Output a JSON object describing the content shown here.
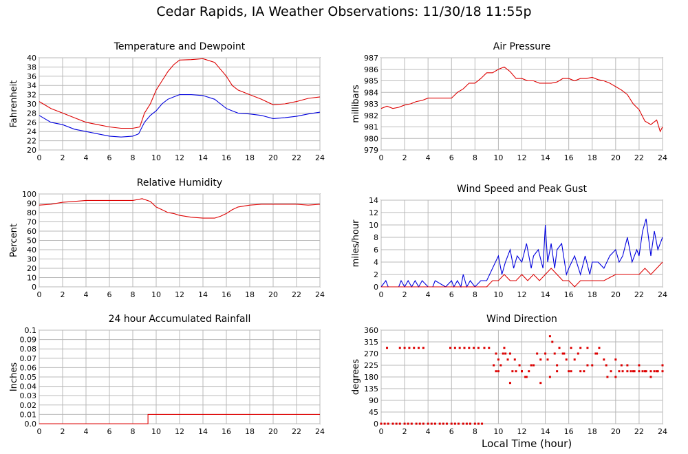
{
  "page": {
    "title": "Cedar Rapids, IA Weather Observations: 11/30/18 11:55p",
    "xlabel": "Local Time (hour)"
  },
  "chart_data": [
    {
      "id": "temp",
      "type": "line",
      "title": "Temperature and Dewpoint",
      "ylabel": "Fahrenheit",
      "xlabel": "",
      "xlim": [
        0,
        24
      ],
      "ylim": [
        20,
        40
      ],
      "yticks": [
        20,
        22,
        24,
        26,
        28,
        30,
        32,
        34,
        36,
        38,
        40
      ],
      "ytick_labels": [
        "20",
        "22",
        "24",
        "26",
        "28",
        "30",
        "32",
        "34",
        "36",
        "38",
        "40"
      ],
      "xticks": [
        0,
        2,
        4,
        6,
        8,
        10,
        12,
        14,
        16,
        18,
        20,
        22,
        24
      ],
      "grid": true,
      "series": [
        {
          "color": "#dd0000",
          "x": [
            0,
            1,
            2,
            3,
            4,
            5,
            6,
            7,
            8,
            8.6,
            9,
            9.5,
            10,
            10.5,
            11,
            11.5,
            12,
            13,
            14,
            15,
            15.5,
            16,
            16.5,
            17,
            18,
            19,
            20,
            21,
            22,
            23,
            24
          ],
          "y": [
            30.5,
            29,
            28,
            27,
            26,
            25.5,
            25,
            24.7,
            24.7,
            25,
            28,
            30,
            33,
            35,
            37,
            38.5,
            39.5,
            39.6,
            39.8,
            39,
            37.5,
            36,
            34,
            33,
            32,
            31,
            29.8,
            30,
            30.5,
            31.2,
            31.5
          ]
        },
        {
          "color": "#0000dd",
          "x": [
            0,
            1,
            2,
            3,
            4,
            5,
            6,
            7,
            8,
            8.5,
            9,
            9.5,
            10,
            10.5,
            11,
            11.5,
            12,
            13,
            14,
            15,
            15.5,
            16,
            16.5,
            17,
            18,
            19,
            20,
            21,
            22,
            23,
            24
          ],
          "y": [
            27.5,
            26,
            25.5,
            24.5,
            24,
            23.5,
            23,
            22.8,
            23,
            23.5,
            26,
            27.5,
            28.5,
            30,
            31,
            31.5,
            32,
            32,
            31.8,
            31,
            30,
            29,
            28.5,
            28,
            27.8,
            27.5,
            26.8,
            27,
            27.3,
            27.8,
            28.2
          ]
        }
      ]
    },
    {
      "id": "pressure",
      "type": "line",
      "title": "Air Pressure",
      "ylabel": "millibars",
      "xlabel": "",
      "xlim": [
        0,
        24
      ],
      "ylim": [
        979,
        987
      ],
      "yticks": [
        979,
        980,
        981,
        982,
        983,
        984,
        985,
        986,
        987
      ],
      "ytick_labels": [
        "979",
        "980",
        "981",
        "982",
        "983",
        "984",
        "985",
        "986",
        "987"
      ],
      "xticks": [
        0,
        2,
        4,
        6,
        8,
        10,
        12,
        14,
        16,
        18,
        20,
        22,
        24
      ],
      "grid": true,
      "series": [
        {
          "color": "#dd0000",
          "x": [
            0,
            0.5,
            1,
            1.5,
            2,
            2.5,
            3,
            3.5,
            4,
            4.5,
            5,
            5.5,
            6,
            6.5,
            7,
            7.5,
            8,
            8.5,
            9,
            9.5,
            10,
            10.5,
            11,
            11.5,
            12,
            12.5,
            13,
            13.5,
            14,
            14.5,
            15,
            15.5,
            16,
            16.5,
            17,
            17.5,
            18,
            18.5,
            19,
            19.5,
            20,
            20.5,
            21,
            21.5,
            22,
            22.5,
            23,
            23.5,
            23.8,
            24
          ],
          "y": [
            982.6,
            982.8,
            982.6,
            982.7,
            982.9,
            983,
            983.2,
            983.3,
            983.5,
            983.5,
            983.5,
            983.5,
            983.5,
            984,
            984.3,
            984.8,
            984.8,
            985.2,
            985.7,
            985.7,
            986,
            986.2,
            985.8,
            985.2,
            985.2,
            985,
            985,
            984.8,
            984.8,
            984.8,
            984.9,
            985.2,
            985.2,
            985,
            985.2,
            985.2,
            985.3,
            985.1,
            985,
            984.8,
            984.5,
            984.2,
            983.8,
            983,
            982.5,
            981.5,
            981.2,
            981.6,
            980.6,
            981
          ]
        }
      ]
    },
    {
      "id": "humidity",
      "type": "line",
      "title": "Relative Humidity",
      "ylabel": "Percent",
      "xlabel": "",
      "xlim": [
        0,
        24
      ],
      "ylim": [
        0,
        100
      ],
      "yticks": [
        0,
        10,
        20,
        30,
        40,
        50,
        60,
        70,
        80,
        90,
        100
      ],
      "ytick_labels": [
        "0",
        "10",
        "20",
        "30",
        "40",
        "50",
        "60",
        "70",
        "80",
        "90",
        "100"
      ],
      "xticks": [
        0,
        2,
        4,
        6,
        8,
        10,
        12,
        14,
        16,
        18,
        20,
        22,
        24
      ],
      "grid": true,
      "series": [
        {
          "color": "#dd0000",
          "x": [
            0,
            1,
            2,
            3,
            4,
            5,
            6,
            7,
            8,
            8.8,
            9.5,
            10,
            10.5,
            11,
            11.5,
            12,
            13,
            14,
            15,
            15.5,
            16,
            16.5,
            17,
            18,
            19,
            20,
            21,
            22,
            23,
            24
          ],
          "y": [
            88,
            89,
            91,
            92,
            93,
            93,
            93,
            93,
            93,
            95,
            92,
            86,
            83,
            80,
            79,
            77,
            75,
            74,
            74,
            76,
            79,
            83,
            86,
            88,
            89,
            89,
            89,
            89,
            88,
            89
          ]
        }
      ]
    },
    {
      "id": "wind",
      "type": "line",
      "title": "Wind Speed and Peak Gust",
      "ylabel": "miles/hour",
      "xlabel": "",
      "xlim": [
        0,
        24
      ],
      "ylim": [
        0,
        14
      ],
      "yticks": [
        0,
        2,
        4,
        6,
        8,
        10,
        12,
        14
      ],
      "ytick_labels": [
        "0",
        "2",
        "4",
        "6",
        "8",
        "10",
        "12",
        "14"
      ],
      "xticks": [
        0,
        2,
        4,
        6,
        8,
        10,
        12,
        14,
        16,
        18,
        20,
        22,
        24
      ],
      "grid": true,
      "series": [
        {
          "color": "#0000dd",
          "x": [
            0,
            0.4,
            0.6,
            0.8,
            1.5,
            1.7,
            2,
            2.3,
            2.6,
            2.9,
            3.2,
            3.5,
            4,
            4.4,
            4.6,
            5.5,
            6,
            6.2,
            6.5,
            6.8,
            7,
            7.3,
            7.6,
            8,
            8.5,
            9,
            9.5,
            10,
            10.3,
            10.6,
            11,
            11.3,
            11.6,
            12,
            12.4,
            12.8,
            13,
            13.4,
            13.8,
            14,
            14.2,
            14.5,
            14.8,
            15,
            15.4,
            15.8,
            16,
            16.5,
            17,
            17.4,
            17.8,
            18,
            18.5,
            19,
            19.5,
            20,
            20.3,
            20.6,
            21,
            21.4,
            21.8,
            22,
            22.3,
            22.6,
            23,
            23.3,
            23.6,
            24
          ],
          "y": [
            0,
            1,
            0,
            0,
            0,
            1,
            0,
            1,
            0,
            1,
            0,
            1,
            0,
            0,
            1,
            0,
            1,
            0,
            1,
            0,
            2,
            0,
            1,
            0,
            1,
            1,
            3,
            5,
            2,
            4,
            6,
            3,
            5,
            4,
            7,
            3,
            5,
            6,
            3,
            10,
            4,
            7,
            3,
            6,
            7,
            2,
            3,
            5,
            2,
            5,
            2,
            4,
            4,
            3,
            5,
            6,
            4,
            5,
            8,
            4,
            6,
            5,
            9,
            11,
            5,
            9,
            6,
            8
          ]
        },
        {
          "color": "#dd0000",
          "x": [
            0,
            9,
            9.5,
            10,
            10.5,
            11,
            11.5,
            12,
            12.5,
            13,
            13.5,
            14,
            14.5,
            15,
            15.5,
            16,
            16.5,
            17,
            18,
            19,
            20,
            21,
            22,
            22.5,
            23,
            23.5,
            24
          ],
          "y": [
            0,
            0,
            1,
            1,
            2,
            1,
            1,
            2,
            1,
            2,
            1,
            2,
            3,
            2,
            1,
            1,
            0,
            1,
            1,
            1,
            2,
            2,
            2,
            3,
            2,
            3,
            4
          ]
        }
      ]
    },
    {
      "id": "rain",
      "type": "line",
      "title": "24 hour Accumulated Rainfall",
      "ylabel": "Inches",
      "xlabel": "",
      "xlim": [
        0,
        24
      ],
      "ylim": [
        0,
        0.1
      ],
      "yticks": [
        0,
        0.01,
        0.02,
        0.03,
        0.04,
        0.05,
        0.06,
        0.07,
        0.08,
        0.09,
        0.1
      ],
      "ytick_labels": [
        "0.0",
        "0.01",
        "0.02",
        "0.03",
        "0.04",
        "0.05",
        "0.06",
        "0.07",
        "0.08",
        "0.09",
        "0.1"
      ],
      "xticks": [
        0,
        2,
        4,
        6,
        8,
        10,
        12,
        14,
        16,
        18,
        20,
        22,
        24
      ],
      "grid": true,
      "series": [
        {
          "color": "#dd0000",
          "x": [
            0,
            9.3,
            9.3,
            24
          ],
          "y": [
            0,
            0,
            0.01,
            0.01
          ]
        }
      ]
    },
    {
      "id": "direction",
      "type": "scatter",
      "title": "Wind Direction",
      "ylabel": "degrees",
      "xlabel": "Local Time (hour)",
      "xlim": [
        0,
        24
      ],
      "ylim": [
        0,
        360
      ],
      "yticks": [
        0,
        45,
        90,
        135,
        180,
        225,
        270,
        315,
        360
      ],
      "ytick_labels": [
        "0",
        "45",
        "90",
        "135",
        "180",
        "225",
        "270",
        "315",
        "360"
      ],
      "xticks": [
        0,
        2,
        4,
        6,
        8,
        10,
        12,
        14,
        16,
        18,
        20,
        22,
        24
      ],
      "grid": true,
      "series": [
        {
          "color": "#dd0000",
          "x": [
            0,
            0.3,
            0.6,
            1,
            1.3,
            1.6,
            2,
            2.3,
            2.6,
            3,
            3.3,
            3.6,
            4,
            4.3,
            4.6,
            5,
            5.3,
            5.6,
            6,
            6.3,
            6.6,
            7,
            7.3,
            7.6,
            8,
            8.3,
            8.6,
            0.5,
            1.6,
            2,
            2.4,
            2.8,
            3.2,
            3.6,
            5.9,
            6.3,
            6.7,
            7.1,
            7.5,
            7.9,
            8.3,
            8.8,
            9.2,
            9.6,
            9.8,
            10,
            10.2,
            10.4,
            10.6,
            10.8,
            11,
            11.2,
            11.5,
            11.8,
            12,
            12.3,
            12.6,
            13,
            13.3,
            13.6,
            14,
            14.2,
            14.4,
            14.6,
            14.8,
            15,
            15.2,
            15.5,
            15.8,
            16,
            16.2,
            16.5,
            16.8,
            17,
            17.3,
            17.6,
            18,
            18.3,
            18.6,
            19,
            19.3,
            19.6,
            20,
            20.3,
            20.6,
            21,
            21.3,
            21.6,
            22,
            22.3,
            22.6,
            23,
            23.3,
            23.6,
            24,
            9.8,
            10,
            10.5,
            11,
            11.4,
            12,
            12.4,
            12.8,
            13.6,
            14.4,
            15,
            15.6,
            16.2,
            17,
            17.6,
            18.4,
            19.2,
            20,
            20.5,
            21,
            21.5,
            22,
            22.5,
            23,
            23.5,
            24
          ],
          "y": [
            0,
            0,
            0,
            0,
            0,
            0,
            0,
            0,
            0,
            0,
            0,
            0,
            0,
            0,
            0,
            0,
            0,
            0,
            0,
            0,
            0,
            0,
            0,
            0,
            0,
            0,
            0,
            292,
            292,
            292,
            292,
            292,
            292,
            292,
            292,
            292,
            292,
            292,
            292,
            292,
            292,
            292,
            292,
            225,
            202,
            202,
            225,
            270,
            270,
            247,
            157,
            202,
            202,
            225,
            202,
            180,
            202,
            225,
            270,
            157,
            270,
            247,
            337,
            315,
            270,
            225,
            292,
            270,
            247,
            202,
            202,
            247,
            270,
            292,
            202,
            292,
            225,
            270,
            292,
            247,
            180,
            202,
            180,
            202,
            202,
            202,
            202,
            202,
            202,
            202,
            202,
            202,
            202,
            202,
            202,
            270,
            247,
            292,
            270,
            247,
            202,
            180,
            225,
            247,
            180,
            202,
            270,
            292,
            202,
            225,
            270,
            225,
            247,
            225,
            225,
            202,
            225,
            202,
            180,
            202,
            225
          ]
        }
      ]
    }
  ]
}
